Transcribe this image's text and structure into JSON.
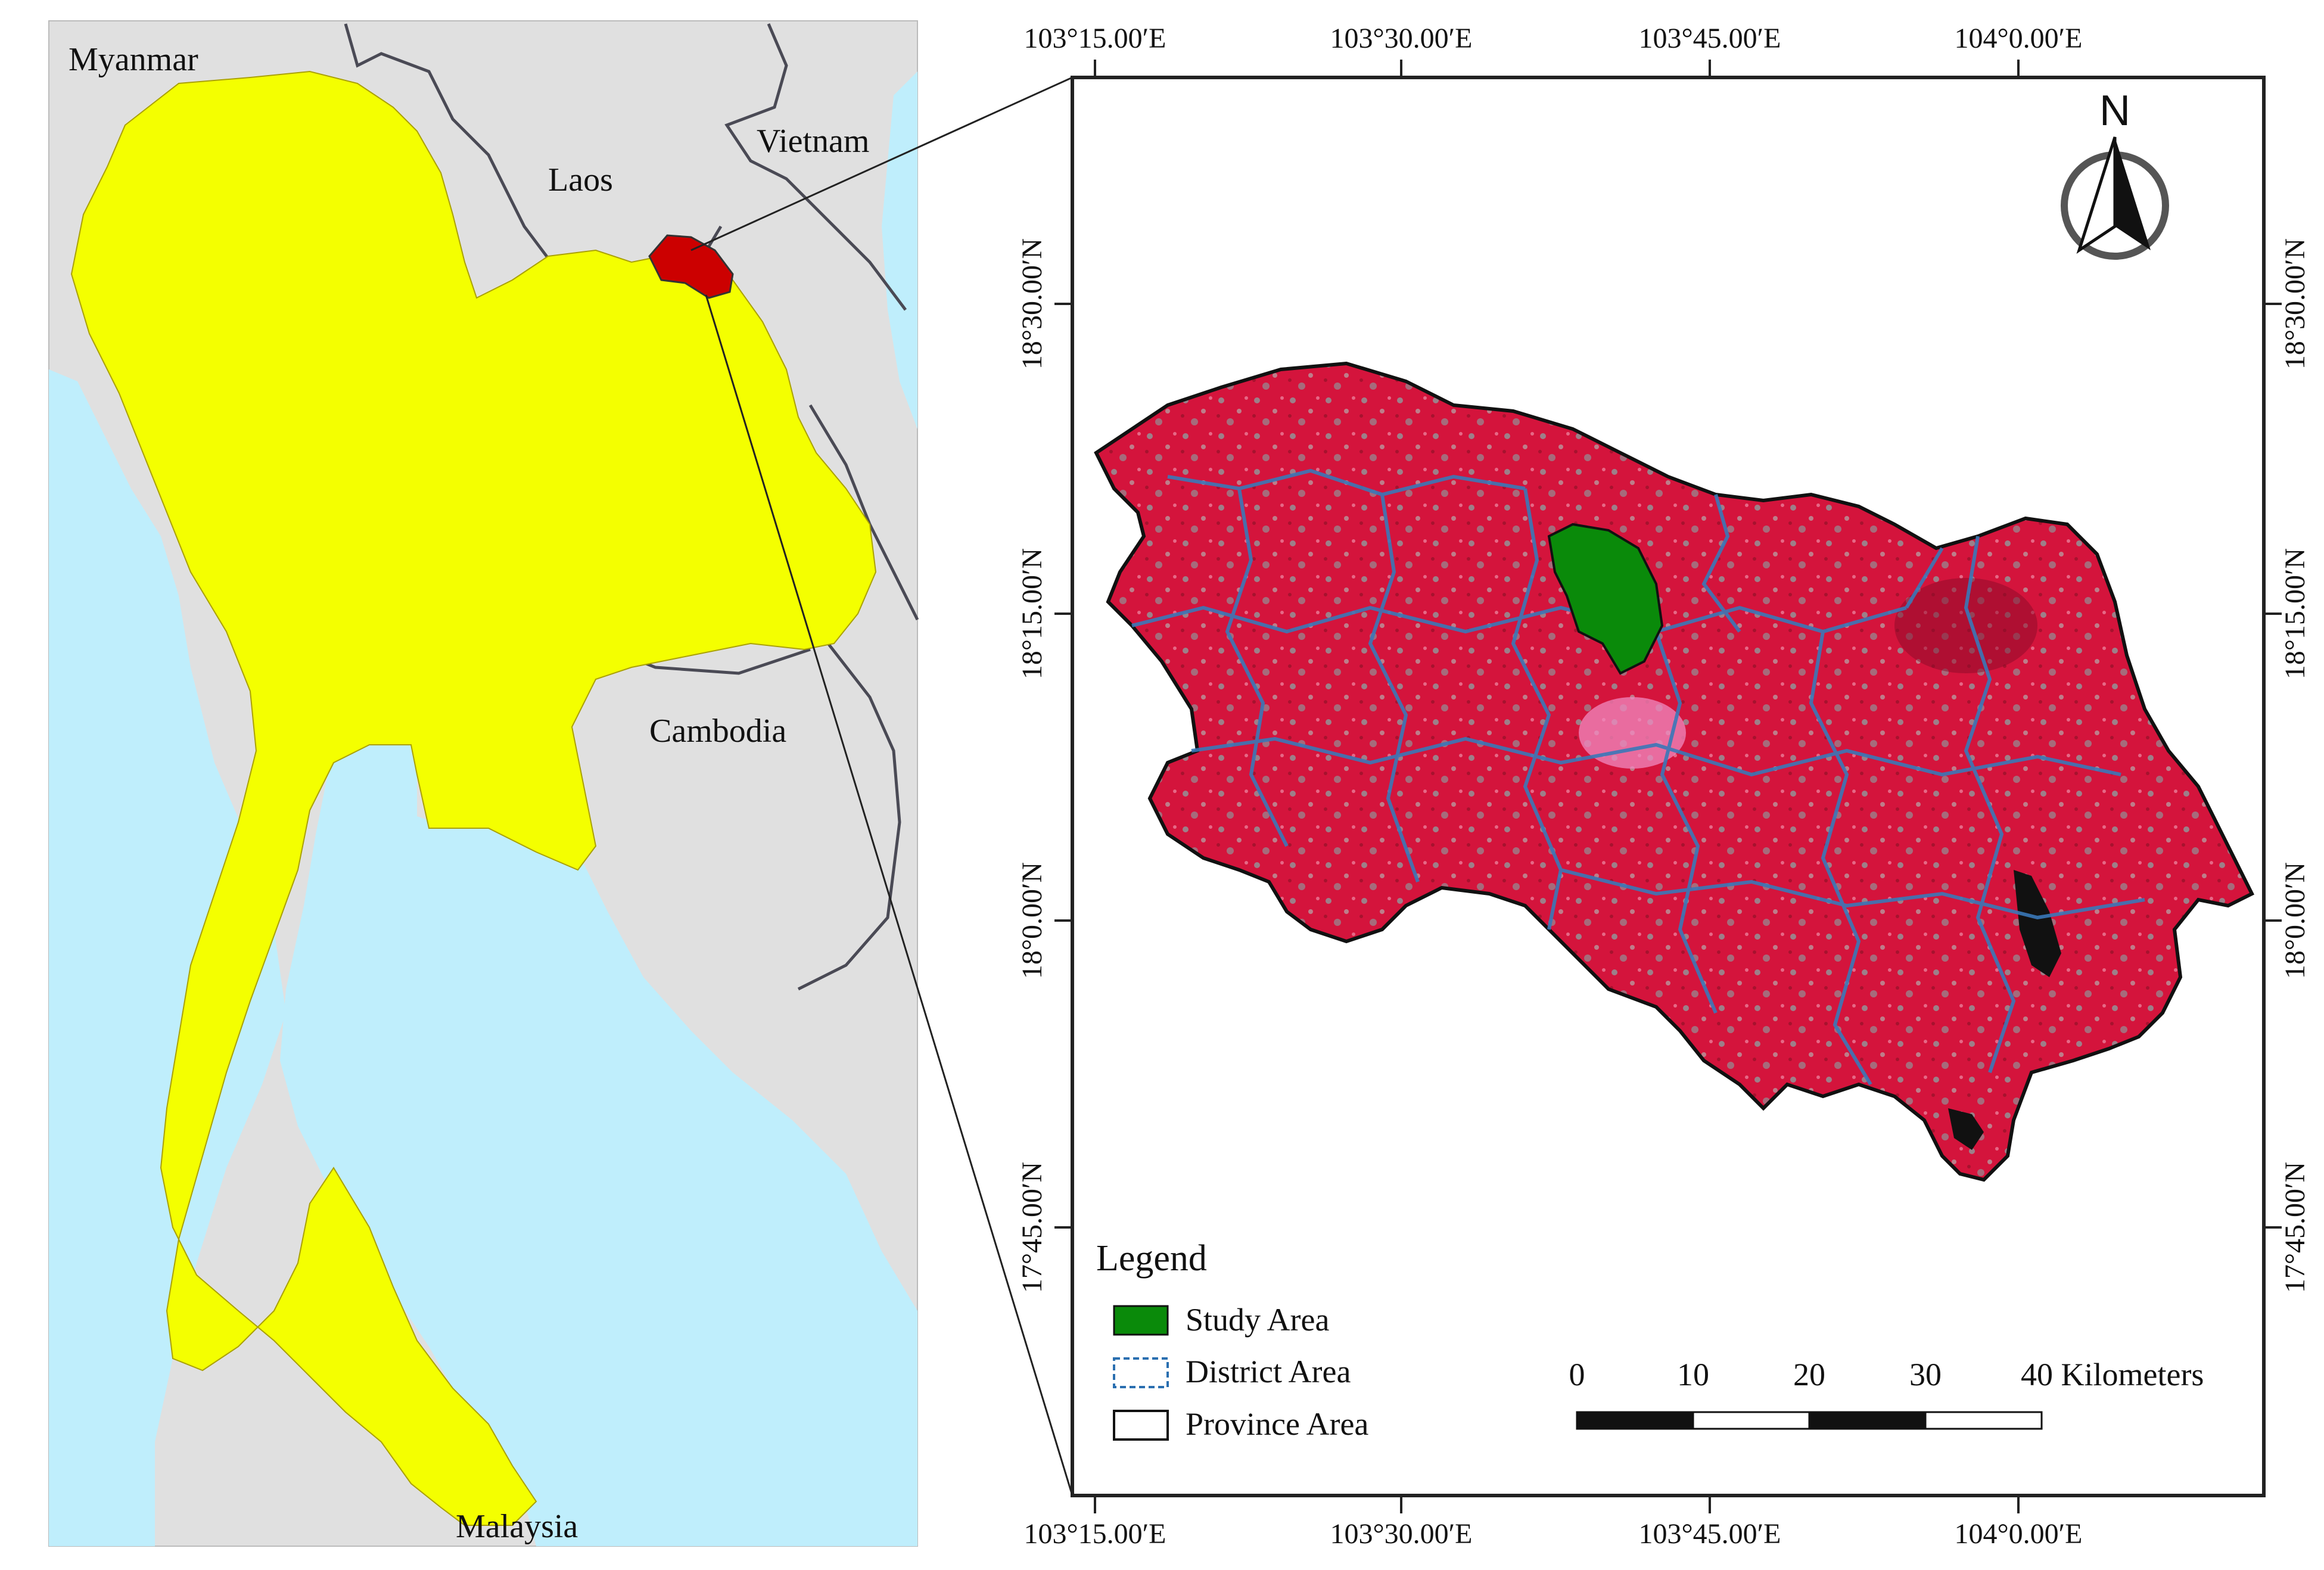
{
  "overview_map": {
    "countries": {
      "myanmar": "Myanmar",
      "laos": "Laos",
      "vietnam": "Vietnam",
      "cambodia": "Cambodia",
      "malaysia": "Malaysia"
    },
    "colors": {
      "land": "#e0e0e0",
      "water": "#bfeefc",
      "thailand": "#f4ff00",
      "province": "#cc0000",
      "border": "#4a4a55"
    }
  },
  "detail_map": {
    "top_ticks": [
      "103°15.00′E",
      "103°30.00′E",
      "103°45.00′E",
      "104°0.00′E"
    ],
    "bottom_ticks": [
      "103°15.00′E",
      "103°30.00′E",
      "103°45.00′E",
      "104°0.00′E"
    ],
    "left_ticks": [
      "18°30.00′N",
      "18°15.00′N",
      "18°0.00′N",
      "17°45.00′N"
    ],
    "right_ticks": [
      "18°30.00′N",
      "18°15.00′N",
      "18°0.00′N",
      "17°45.00′N"
    ],
    "north_label": "N",
    "legend": {
      "title": "Legend",
      "items": [
        {
          "label": "Study Area",
          "color": "#0a8a0a"
        },
        {
          "label": "District Area",
          "color": "#2a6fb0"
        },
        {
          "label": "Province Area",
          "color": "#ffffff"
        }
      ]
    },
    "scale_bar": {
      "labels": [
        "0",
        "10",
        "20",
        "30",
        "40 Kilometers"
      ]
    },
    "colors": {
      "imagery": "#d4143c",
      "imagery_light": "#e85a8a",
      "vegetation_cyan": "#6fd6c8",
      "district_line": "#3a78b8",
      "study_area": "#0a8a0a"
    }
  }
}
